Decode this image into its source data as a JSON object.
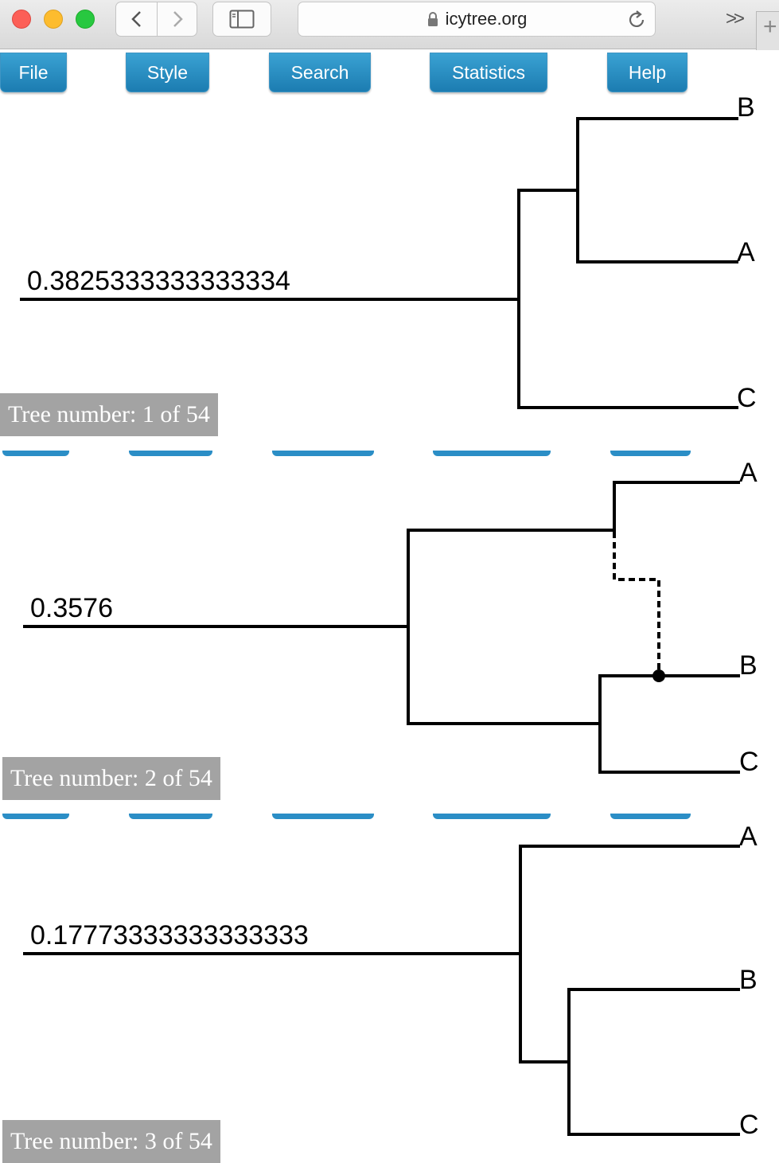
{
  "browser": {
    "url": "icytree.org",
    "icons": [
      "back-icon",
      "forward-icon",
      "sidebar-icon",
      "lock-icon",
      "reload-icon",
      "chevrons-icon",
      "new-tab-icon"
    ]
  },
  "menu": {
    "file_label": "File",
    "style_label": "Style",
    "search_label": "Search",
    "statistics_label": "Statistics",
    "help_label": "Help",
    "color": "#2b8ec6"
  },
  "trees": [
    {
      "root_label": "0.3825333333333334",
      "leaves": [
        "B",
        "A",
        "C"
      ],
      "badge": "Tree number: 1 of 54"
    },
    {
      "root_label": "0.3576",
      "leaves": [
        "A",
        "B",
        "C"
      ],
      "badge": "Tree number: 2 of 54"
    },
    {
      "root_label": "0.17773333333333333",
      "leaves": [
        "A",
        "B",
        "C"
      ],
      "badge": "Tree number: 3 of 54"
    }
  ]
}
